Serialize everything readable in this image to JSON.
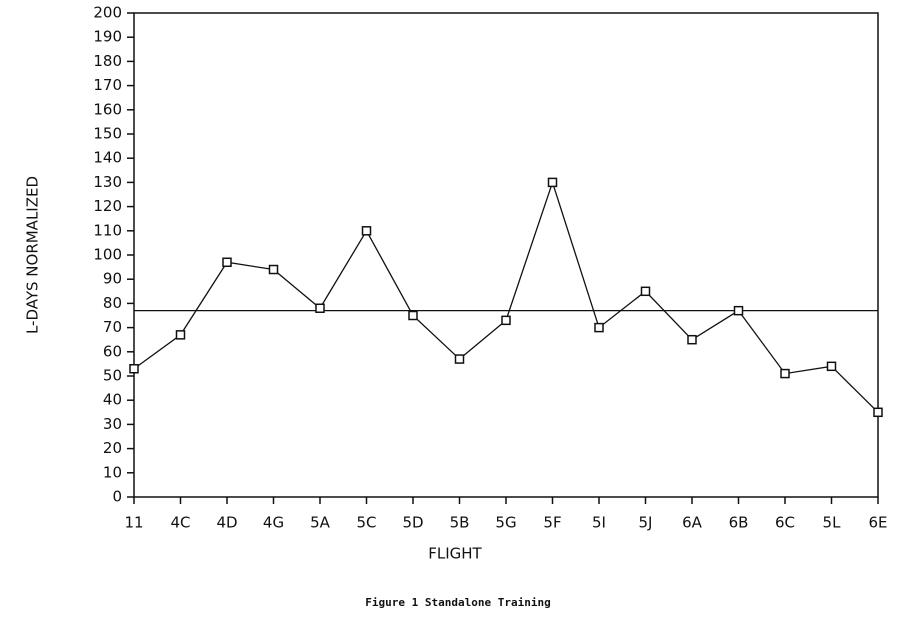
{
  "chart_data": {
    "type": "line",
    "title": "Figure 1 Standalone Training",
    "x_label": "FLIGHT",
    "y_label": "L-DAYS NORMALIZED",
    "categories": [
      "11",
      "4C",
      "4D",
      "4G",
      "5A",
      "5C",
      "5D",
      "5B",
      "5G",
      "5F",
      "5I",
      "5J",
      "6A",
      "6B",
      "6C",
      "5L",
      "6E"
    ],
    "series": [
      {
        "color": "#111111",
        "values": [
          53,
          67,
          97,
          94,
          78,
          110,
          75,
          57,
          73,
          130,
          70,
          85,
          65,
          77,
          51,
          54,
          35
        ]
      }
    ],
    "reference_line": 77,
    "ylim": [
      0,
      200
    ],
    "yticks": [
      0,
      10,
      20,
      30,
      40,
      50,
      60,
      70,
      80,
      90,
      100,
      110,
      120,
      130,
      140,
      150,
      160,
      170,
      180,
      190,
      200
    ]
  }
}
